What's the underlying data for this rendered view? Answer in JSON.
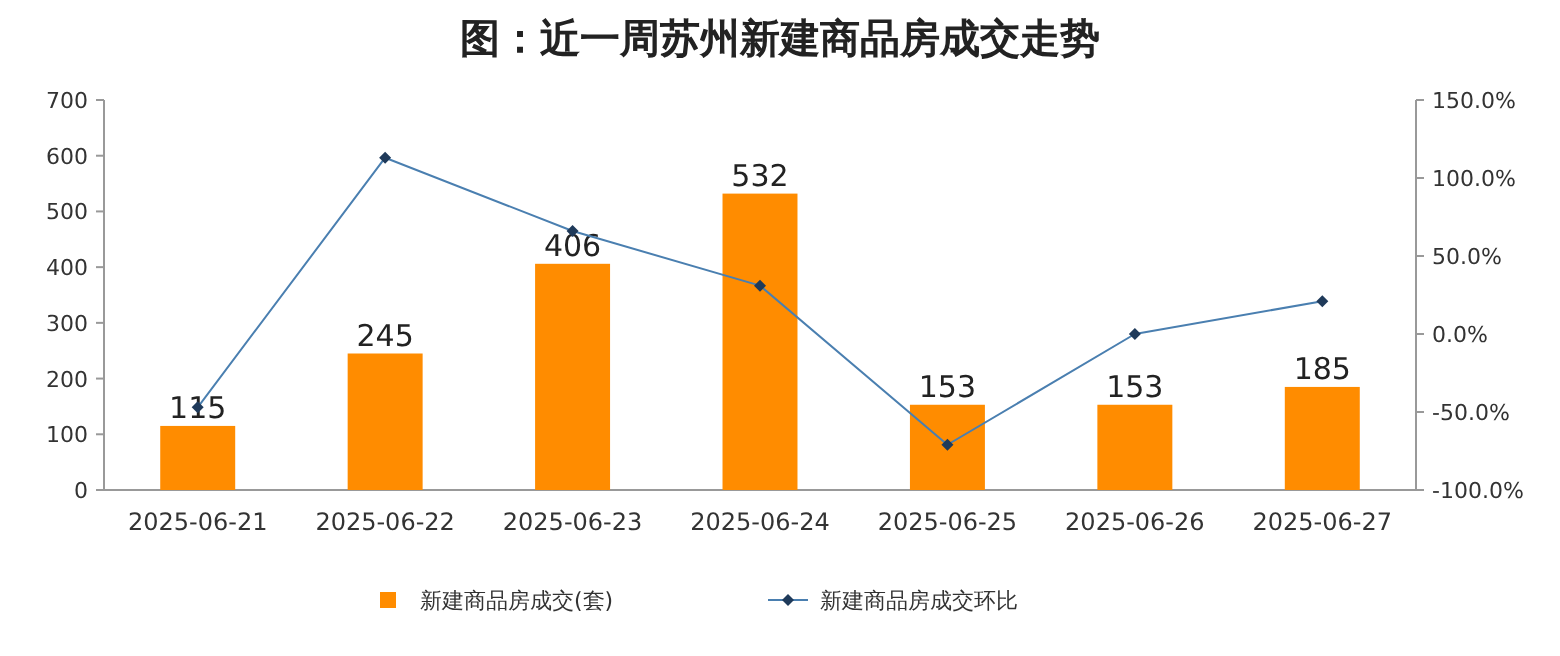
{
  "chart_data": {
    "type": "bar",
    "title": "图：近一周苏州新建商品房成交走势",
    "categories": [
      "2025-06-21",
      "2025-06-22",
      "2025-06-23",
      "2025-06-24",
      "2025-06-25",
      "2025-06-26",
      "2025-06-27"
    ],
    "series": [
      {
        "name": "新建商品房成交(套)",
        "color": "#ff8c00",
        "values": [
          115,
          245,
          406,
          532,
          153,
          153,
          185
        ],
        "value_labels": [
          "115",
          "245",
          "406",
          "532",
          "153",
          "153",
          "185"
        ]
      },
      {
        "name": "新建商品房成交环比",
        "type": "line",
        "axis": "y2",
        "color": "#4a7fb0",
        "marker": "diamond",
        "values": [
          -47,
          113,
          66,
          31,
          -71,
          0,
          21
        ]
      }
    ],
    "ylim": [
      0,
      700
    ],
    "yticks": [
      0,
      100,
      200,
      300,
      400,
      500,
      600,
      700
    ],
    "y2lim": [
      -100,
      150
    ],
    "y2ticks": [
      {
        "value": -100,
        "label": "-100.0%"
      },
      {
        "value": -50,
        "label": "-50.0%"
      },
      {
        "value": 0,
        "label": "0.0%"
      },
      {
        "value": 50,
        "label": "50.0%"
      },
      {
        "value": 100,
        "label": "100.0%"
      },
      {
        "value": 150,
        "label": "150.0%"
      }
    ],
    "legend": "bottom",
    "grid": false
  }
}
